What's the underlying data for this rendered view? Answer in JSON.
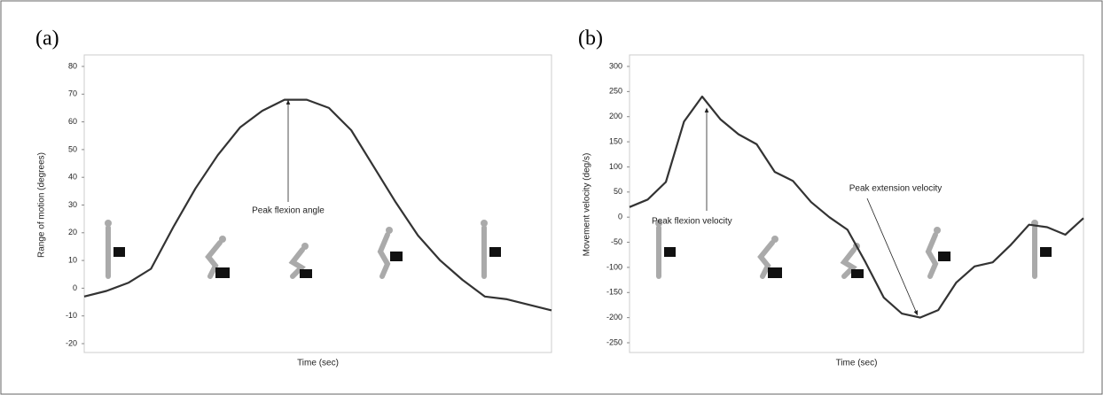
{
  "chart_data": [
    {
      "type": "line",
      "panel_label": "(a)",
      "y_label": "Range of motion (degrees)",
      "x_label": "Time (sec)",
      "annotation": "Peak flexion angle",
      "ylim": [
        -20,
        80
      ],
      "yticks": [
        -20,
        -10,
        0,
        10,
        20,
        30,
        40,
        50,
        60,
        70,
        80
      ],
      "color": "#333333",
      "values": [
        -3,
        -1,
        2,
        7,
        22,
        36,
        48,
        58,
        64,
        68,
        68,
        65,
        57,
        44,
        31,
        19,
        10,
        3,
        -3,
        -4,
        -6,
        -8
      ]
    },
    {
      "type": "line",
      "panel_label": "(b)",
      "y_label": "Movement velocity (deg/s)",
      "x_label": "Time (sec)",
      "annotations": [
        "Peak flexion velocity",
        "Peak extension velocity"
      ],
      "ylim": [
        -250,
        300
      ],
      "yticks": [
        -250,
        -200,
        -150,
        -100,
        -50,
        0,
        50,
        100,
        150,
        200,
        250,
        300
      ],
      "color": "#333333",
      "values": [
        20,
        35,
        70,
        190,
        240,
        195,
        165,
        145,
        90,
        72,
        30,
        0,
        -25,
        -90,
        -160,
        -192,
        -200,
        -185,
        -130,
        -98,
        -90,
        -55,
        -15,
        -20,
        -35,
        -2
      ]
    }
  ]
}
